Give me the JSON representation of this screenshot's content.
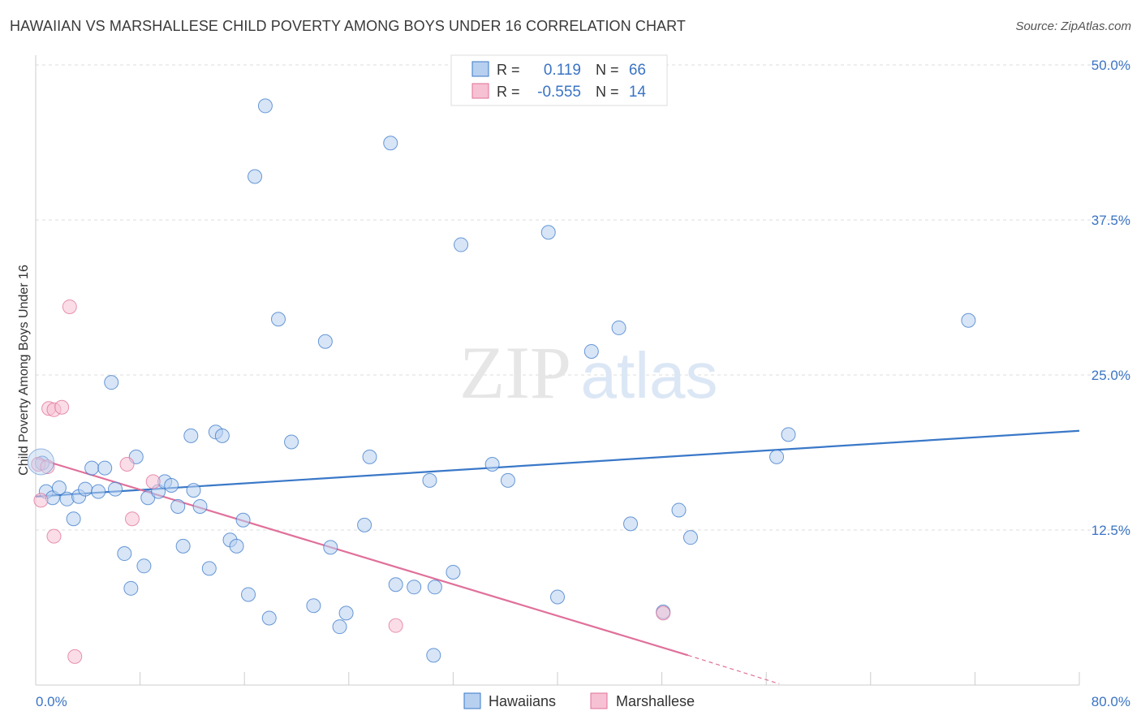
{
  "header": {
    "title": "HAWAIIAN VS MARSHALLESE CHILD POVERTY AMONG BOYS UNDER 16 CORRELATION CHART",
    "source": "Source: ZipAtlas.com"
  },
  "watermark": {
    "zip": "ZIP",
    "atlas": "atlas"
  },
  "legend_box": {
    "rows": [
      {
        "r_label": "R =",
        "r_value": "0.119",
        "n_label": "N =",
        "n_value": "66"
      },
      {
        "r_label": "R =",
        "r_value": "-0.555",
        "n_label": "N =",
        "n_value": "14"
      }
    ]
  },
  "colors": {
    "blue": "#3a78c8",
    "blue_fill": "#b7d0f0",
    "pink": "#e0709a",
    "pink_fill": "#f6c1d3",
    "value_text": "#3a74c4",
    "grid": "#dddddd"
  },
  "chart_data": {
    "type": "scatter",
    "ylabel": "Child Poverty Among Boys Under 16",
    "xlim": [
      0,
      80
    ],
    "ylim": [
      0,
      50
    ],
    "x_tick_labels": [
      "0.0%",
      "80.0%"
    ],
    "y_ticks": [
      12.5,
      25.0,
      37.5,
      50.0
    ],
    "y_tick_labels": [
      "12.5%",
      "25.0%",
      "37.5%",
      "50.0%"
    ],
    "grid": true,
    "legend_position": "bottom-center",
    "series": [
      {
        "name": "Hawaiians",
        "color": "#3a78c8",
        "trend": {
          "x1": 0,
          "y1": 15.2,
          "x2": 80,
          "y2": 20.5
        },
        "points": [
          [
            0.5,
            17.9
          ],
          [
            0.8,
            15.6
          ],
          [
            1.3,
            15.1
          ],
          [
            1.8,
            15.9
          ],
          [
            2.4,
            15.0
          ],
          [
            2.9,
            13.4
          ],
          [
            3.3,
            15.2
          ],
          [
            3.8,
            15.8
          ],
          [
            4.3,
            17.5
          ],
          [
            4.8,
            15.6
          ],
          [
            5.3,
            17.5
          ],
          [
            5.8,
            24.4
          ],
          [
            6.1,
            15.8
          ],
          [
            6.8,
            10.6
          ],
          [
            7.3,
            7.8
          ],
          [
            7.7,
            18.4
          ],
          [
            8.3,
            9.6
          ],
          [
            8.6,
            15.1
          ],
          [
            9.4,
            15.6
          ],
          [
            9.9,
            16.4
          ],
          [
            10.4,
            16.1
          ],
          [
            10.9,
            14.4
          ],
          [
            11.3,
            11.2
          ],
          [
            12.1,
            15.7
          ],
          [
            11.9,
            20.1
          ],
          [
            12.6,
            14.4
          ],
          [
            13.3,
            9.4
          ],
          [
            13.8,
            20.4
          ],
          [
            14.3,
            20.1
          ],
          [
            14.9,
            11.7
          ],
          [
            15.4,
            11.2
          ],
          [
            15.9,
            13.3
          ],
          [
            16.3,
            7.3
          ],
          [
            16.8,
            41.0
          ],
          [
            17.6,
            46.7
          ],
          [
            17.9,
            5.4
          ],
          [
            18.6,
            29.5
          ],
          [
            19.6,
            19.6
          ],
          [
            21.3,
            6.4
          ],
          [
            22.2,
            27.7
          ],
          [
            22.6,
            11.1
          ],
          [
            23.3,
            4.7
          ],
          [
            23.8,
            5.8
          ],
          [
            25.2,
            12.9
          ],
          [
            25.6,
            18.4
          ],
          [
            27.2,
            43.7
          ],
          [
            27.6,
            8.1
          ],
          [
            29.0,
            7.9
          ],
          [
            30.2,
            16.5
          ],
          [
            30.5,
            2.4
          ],
          [
            30.6,
            7.9
          ],
          [
            32.0,
            9.1
          ],
          [
            32.6,
            35.5
          ],
          [
            35.0,
            17.8
          ],
          [
            36.2,
            16.5
          ],
          [
            39.3,
            36.5
          ],
          [
            40.0,
            7.1
          ],
          [
            42.6,
            26.9
          ],
          [
            44.7,
            28.8
          ],
          [
            45.6,
            13.0
          ],
          [
            49.3,
            14.1
          ],
          [
            50.2,
            11.9
          ],
          [
            56.8,
            18.4
          ],
          [
            57.7,
            20.2
          ],
          [
            71.5,
            29.4
          ],
          [
            48.1,
            5.9
          ]
        ]
      },
      {
        "name": "Marshallese",
        "color": "#e0709a",
        "trend": {
          "x1": 0,
          "y1": 18.3,
          "x2": 50,
          "y2": 2.4
        },
        "trend_dashed": {
          "x1": 50,
          "y1": 2.4,
          "x2": 57,
          "y2": 0.1
        },
        "points": [
          [
            0.2,
            17.8
          ],
          [
            0.4,
            14.9
          ],
          [
            0.9,
            17.6
          ],
          [
            1.0,
            22.3
          ],
          [
            1.4,
            22.2
          ],
          [
            1.4,
            12.0
          ],
          [
            2.0,
            22.4
          ],
          [
            2.6,
            30.5
          ],
          [
            3.0,
            2.3
          ],
          [
            7.0,
            17.8
          ],
          [
            7.4,
            13.4
          ],
          [
            9.0,
            16.4
          ],
          [
            27.6,
            4.8
          ],
          [
            48.1,
            5.8
          ]
        ]
      }
    ]
  }
}
